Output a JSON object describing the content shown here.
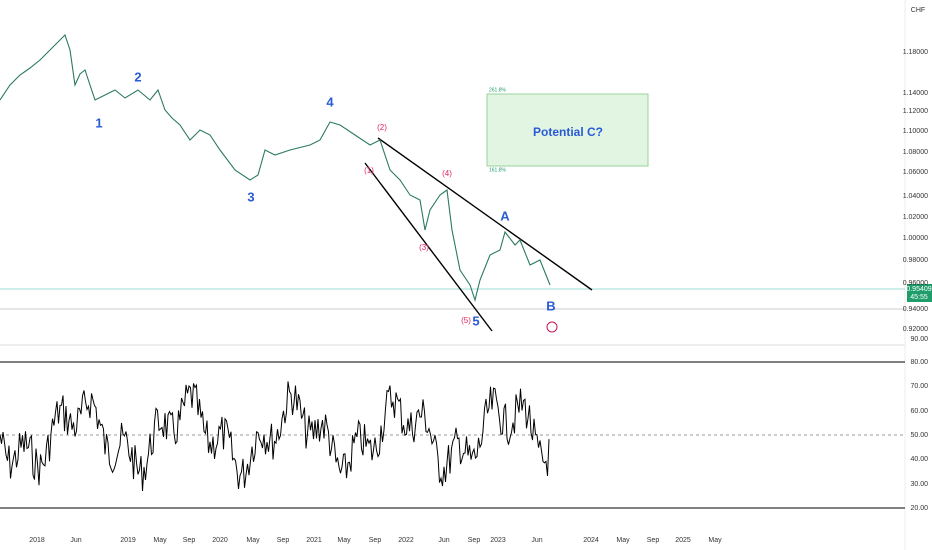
{
  "header": {
    "currency": "CHF"
  },
  "price_axis": [
    "1.18000",
    "1.14000",
    "1.12000",
    "1.10000",
    "1.08000",
    "1.06000",
    "1.04000",
    "1.02000",
    "1.00000",
    "0.98000",
    "0.96000",
    "0.94000",
    "0.92000"
  ],
  "price_badge": {
    "price": "0.95409",
    "countdown": "45:55"
  },
  "rsi_axis": [
    "90.00",
    "80.00",
    "70.00",
    "60.00",
    "50.00",
    "40.00",
    "30.00",
    "20.00"
  ],
  "time_axis": [
    "2018",
    "Jun",
    "2019",
    "May",
    "Sep",
    "2020",
    "May",
    "Sep",
    "2021",
    "May",
    "Sep",
    "2022",
    "Jun",
    "Sep",
    "2023",
    "Jun",
    "2024",
    "May",
    "Sep",
    "2025",
    "May"
  ],
  "waves": [
    "1",
    "2",
    "3",
    "4",
    "5",
    "A",
    "B"
  ],
  "sub_waves": [
    "(1)",
    "(2)",
    "(3)",
    "(4)",
    "(5)"
  ],
  "target": {
    "label": "Potential C?",
    "upper": "261.8%",
    "lower": "161.8%"
  }
}
